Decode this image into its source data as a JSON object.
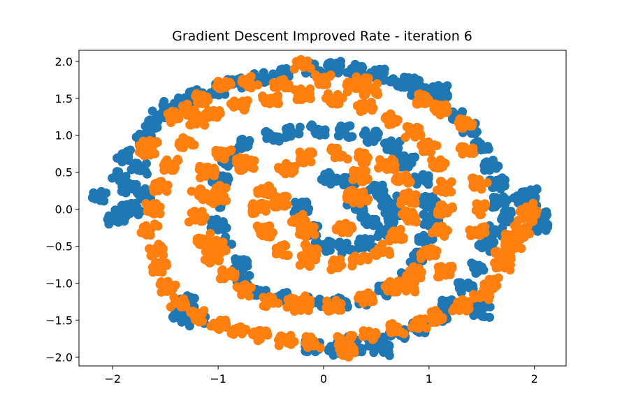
{
  "chart_data": {
    "type": "scatter",
    "title": "Gradient Descent Improved Rate - iteration 6",
    "xlabel": "",
    "ylabel": "",
    "xlim": [
      -2.32,
      2.3
    ],
    "ylim": [
      -2.12,
      2.15
    ],
    "x_ticks": [
      -2,
      -1,
      0,
      1,
      2
    ],
    "x_tick_labels": [
      "−2",
      "−1",
      "0",
      "1",
      "2"
    ],
    "y_ticks": [
      -2.0,
      -1.5,
      -1.0,
      -0.5,
      0.0,
      0.5,
      1.0,
      1.5,
      2.0
    ],
    "y_tick_labels": [
      "−2.0",
      "−1.5",
      "−1.0",
      "−0.5",
      "0.0",
      "0.5",
      "1.0",
      "1.5",
      "2.0"
    ],
    "grid": false,
    "legend": "none",
    "series": [
      {
        "color": "#1f77b4",
        "points": [
          [
            -2.13,
            0.16
          ],
          [
            -1.95,
            0.45
          ],
          [
            -1.9,
            -0.02
          ],
          [
            -1.97,
            -0.16
          ],
          [
            -1.88,
            0.72
          ],
          [
            -1.85,
            0.3
          ],
          [
            -1.8,
            0.0
          ],
          [
            -1.75,
            0.55
          ],
          [
            -1.7,
            0.95
          ],
          [
            -1.62,
            1.15
          ],
          [
            -1.55,
            1.25
          ],
          [
            -1.45,
            1.38
          ],
          [
            -1.3,
            1.45
          ],
          [
            -1.2,
            1.55
          ],
          [
            -1.0,
            1.62
          ],
          [
            -0.85,
            1.7
          ],
          [
            -0.6,
            1.78
          ],
          [
            -0.4,
            1.85
          ],
          [
            -0.1,
            1.9
          ],
          [
            0.1,
            1.92
          ],
          [
            0.3,
            1.88
          ],
          [
            0.5,
            1.82
          ],
          [
            0.7,
            1.72
          ],
          [
            0.9,
            1.6
          ],
          [
            1.0,
            1.55
          ],
          [
            1.15,
            1.4
          ],
          [
            1.3,
            1.25
          ],
          [
            1.4,
            1.1
          ],
          [
            1.5,
            0.85
          ],
          [
            1.58,
            0.6
          ],
          [
            1.65,
            0.35
          ],
          [
            1.68,
            0.1
          ],
          [
            1.7,
            -0.1
          ],
          [
            1.62,
            -0.3
          ],
          [
            1.55,
            -0.5
          ],
          [
            1.45,
            -0.8
          ],
          [
            1.35,
            -1.05
          ],
          [
            1.2,
            -1.3
          ],
          [
            1.1,
            -1.45
          ],
          [
            0.9,
            -1.6
          ],
          [
            0.7,
            -1.68
          ],
          [
            0.5,
            -1.78
          ],
          [
            0.3,
            -1.85
          ],
          [
            0.1,
            -1.9
          ],
          [
            -0.1,
            -1.85
          ],
          [
            0.18,
            -1.8
          ],
          [
            -0.8,
            -0.75
          ],
          [
            -0.95,
            -0.45
          ],
          [
            -1.0,
            -0.2
          ],
          [
            -1.02,
            0.1
          ],
          [
            -0.98,
            0.4
          ],
          [
            -0.9,
            0.65
          ],
          [
            -0.75,
            0.88
          ],
          [
            -0.5,
            1.0
          ],
          [
            -0.3,
            1.05
          ],
          [
            -0.05,
            1.08
          ],
          [
            0.2,
            1.05
          ],
          [
            0.45,
            0.98
          ],
          [
            0.65,
            0.85
          ],
          [
            0.8,
            0.65
          ],
          [
            0.92,
            0.4
          ],
          [
            1.0,
            0.1
          ],
          [
            1.02,
            -0.15
          ],
          [
            0.98,
            -0.4
          ],
          [
            0.9,
            -0.65
          ],
          [
            0.8,
            -0.9
          ],
          [
            0.6,
            -1.1
          ],
          [
            0.4,
            -1.22
          ],
          [
            0.15,
            -1.28
          ],
          [
            -0.1,
            -1.25
          ],
          [
            -0.4,
            -1.2
          ],
          [
            -0.6,
            -1.1
          ],
          [
            -0.78,
            -0.95
          ],
          [
            -1.3,
            -1.25
          ],
          [
            -1.35,
            -1.45
          ],
          [
            -1.2,
            -1.5
          ],
          [
            -0.2,
            0.02
          ],
          [
            -0.12,
            -0.3
          ],
          [
            0.0,
            -0.5
          ],
          [
            0.2,
            -0.52
          ],
          [
            0.4,
            -0.45
          ],
          [
            0.58,
            -0.3
          ],
          [
            0.65,
            -0.1
          ],
          [
            0.62,
            0.1
          ],
          [
            0.5,
            0.25
          ],
          [
            0.25,
            0.35
          ],
          [
            0.05,
            0.42
          ],
          [
            0.3,
            0.0
          ],
          [
            0.42,
            -0.15
          ],
          [
            1.95,
            0.1
          ],
          [
            2.05,
            -0.1
          ],
          [
            2.05,
            -0.25
          ],
          [
            1.95,
            0.2
          ],
          [
            1.88,
            0.12
          ],
          [
            1.5,
            -1.25
          ],
          [
            1.5,
            -1.4
          ],
          [
            0.55,
            -1.9
          ],
          [
            1.1,
            1.6
          ],
          [
            0.85,
            1.7
          ],
          [
            -1.72,
            0.2
          ]
        ]
      },
      {
        "color": "#ff7f0e",
        "points": [
          [
            -0.2,
            1.96
          ],
          [
            -0.4,
            1.72
          ],
          [
            -0.7,
            1.72
          ],
          [
            -0.95,
            1.65
          ],
          [
            -1.15,
            1.5
          ],
          [
            -1.3,
            1.35
          ],
          [
            -1.45,
            1.25
          ],
          [
            0.0,
            1.75
          ],
          [
            0.3,
            1.65
          ],
          [
            0.45,
            1.62
          ],
          [
            0.95,
            1.48
          ],
          [
            1.1,
            1.35
          ],
          [
            1.35,
            1.15
          ],
          [
            1.48,
            0.35
          ],
          [
            1.5,
            0.0
          ],
          [
            1.46,
            -0.3
          ],
          [
            -1.68,
            0.8
          ],
          [
            -1.65,
            0.85
          ],
          [
            -1.3,
            0.9
          ],
          [
            -1.45,
            0.6
          ],
          [
            -1.55,
            0.3
          ],
          [
            -1.62,
            0.0
          ],
          [
            -1.65,
            -0.28
          ],
          [
            -1.6,
            -0.55
          ],
          [
            -1.55,
            -0.8
          ],
          [
            -1.48,
            -1.05
          ],
          [
            -1.38,
            -1.25
          ],
          [
            -1.2,
            -1.45
          ],
          [
            -1.0,
            -1.55
          ],
          [
            -0.8,
            -1.65
          ],
          [
            -0.6,
            -1.72
          ],
          [
            -0.35,
            -1.78
          ],
          [
            -0.1,
            -1.8
          ],
          [
            0.2,
            -1.78
          ],
          [
            0.22,
            -1.92
          ],
          [
            0.45,
            -1.7
          ],
          [
            0.7,
            -1.62
          ],
          [
            0.9,
            -1.55
          ],
          [
            1.1,
            -1.45
          ],
          [
            1.3,
            -1.3
          ],
          [
            1.5,
            -1.15
          ],
          [
            1.6,
            -1.0
          ],
          [
            1.7,
            -0.75
          ],
          [
            1.8,
            -0.5
          ],
          [
            1.88,
            -0.3
          ],
          [
            1.92,
            -0.1
          ],
          [
            1.95,
            0.0
          ],
          [
            -1.2,
            1.2
          ],
          [
            -1.05,
            1.3
          ],
          [
            -0.8,
            1.4
          ],
          [
            -0.5,
            1.5
          ],
          [
            -0.2,
            1.55
          ],
          [
            0.1,
            1.5
          ],
          [
            0.4,
            1.4
          ],
          [
            0.65,
            1.22
          ],
          [
            0.85,
            1.05
          ],
          [
            1.0,
            0.85
          ],
          [
            1.1,
            0.6
          ],
          [
            1.15,
            0.3
          ],
          [
            1.15,
            0.0
          ],
          [
            1.1,
            -0.3
          ],
          [
            1.0,
            -0.6
          ],
          [
            0.85,
            -0.85
          ],
          [
            0.65,
            -1.05
          ],
          [
            0.4,
            -1.2
          ],
          [
            0.1,
            -1.3
          ],
          [
            -0.2,
            -1.3
          ],
          [
            -0.5,
            -1.25
          ],
          [
            -0.75,
            -1.1
          ],
          [
            -0.9,
            -0.9
          ],
          [
            -1.05,
            -0.65
          ],
          [
            -1.15,
            -0.4
          ],
          [
            -1.2,
            -0.1
          ],
          [
            -1.18,
            0.2
          ],
          [
            -1.1,
            0.5
          ],
          [
            -0.95,
            0.75
          ],
          [
            -1.0,
            0.25
          ],
          [
            -1.0,
            0.15
          ],
          [
            -1.0,
            -0.5
          ],
          [
            -0.75,
            0.6
          ],
          [
            -0.72,
            0.62
          ],
          [
            -0.35,
            0.55
          ],
          [
            -0.55,
            0.25
          ],
          [
            -0.6,
            0.0
          ],
          [
            -0.55,
            -0.3
          ],
          [
            -0.4,
            -0.55
          ],
          [
            -0.15,
            -0.7
          ],
          [
            0.1,
            -0.75
          ],
          [
            0.35,
            -0.7
          ],
          [
            0.55,
            -0.55
          ],
          [
            0.7,
            -0.35
          ],
          [
            0.8,
            -0.1
          ],
          [
            0.8,
            0.15
          ],
          [
            0.75,
            0.4
          ],
          [
            0.6,
            0.6
          ],
          [
            0.4,
            0.7
          ],
          [
            0.15,
            0.75
          ],
          [
            -0.15,
            0.7
          ],
          [
            0.3,
            0.2
          ],
          [
            0.35,
            0.15
          ],
          [
            -0.25,
            -0.15
          ],
          [
            -0.15,
            -0.3
          ],
          [
            0.2,
            -0.25
          ],
          [
            -0.12,
            -0.55
          ],
          [
            0.8,
            -1.05
          ],
          [
            1.15,
            -0.85
          ],
          [
            0.35,
            1.73
          ],
          [
            1.35,
            0.8
          ],
          [
            -0.25,
            -1.25
          ],
          [
            -0.28,
            -1.28
          ],
          [
            1.7,
            -0.6
          ],
          [
            1.8,
            -0.4
          ],
          [
            0.35,
            0.45
          ],
          [
            -0.4,
            0.1
          ]
        ]
      }
    ]
  }
}
